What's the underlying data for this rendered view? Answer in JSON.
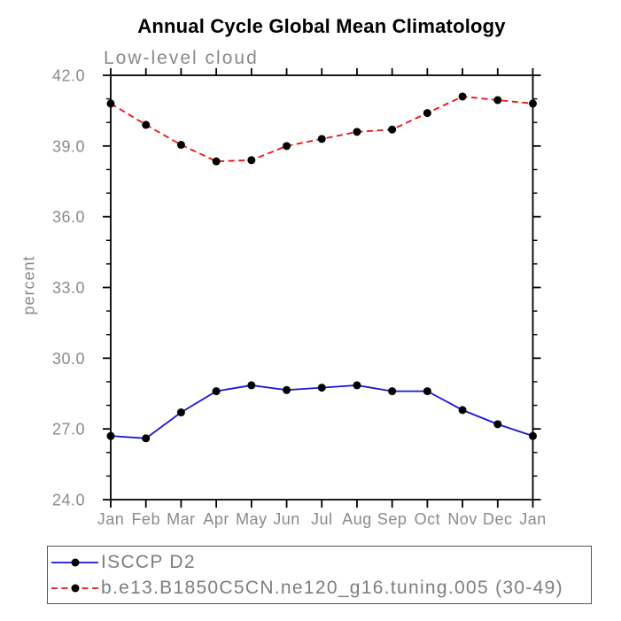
{
  "page": {
    "background": "#ffffff"
  },
  "chart_data": {
    "type": "line",
    "title": "Annual Cycle Global Mean Climatology",
    "subtitle": "Low-level cloud",
    "xlabel": "",
    "ylabel": "percent",
    "categories": [
      "Jan",
      "Feb",
      "Mar",
      "Apr",
      "May",
      "Jun",
      "Jul",
      "Aug",
      "Sep",
      "Oct",
      "Nov",
      "Dec",
      "Jan"
    ],
    "ylim": [
      24.0,
      42.0
    ],
    "ytick_major_interval": 3.0,
    "ytick_minor_interval": 1.0,
    "ytick_labels": [
      "24.0",
      "27.0",
      "30.0",
      "33.0",
      "36.0",
      "39.0",
      "42.0"
    ],
    "grid": false,
    "legend_position": "bottom-left-box",
    "axis_color": "#000000",
    "label_color": "#8a8a8a",
    "marker_color": "#000000",
    "marker_radius": 4.5,
    "series": [
      {
        "name": "ISCCP D2",
        "color": "#1515d6",
        "style": "solid",
        "marker": "filled-circle",
        "values": [
          26.7,
          26.6,
          27.7,
          28.6,
          28.85,
          28.65,
          28.75,
          28.85,
          28.6,
          28.6,
          27.8,
          27.2,
          26.7
        ]
      },
      {
        "name": "b.e13.B1850C5CN.ne120_g16.tuning.005 (30-49)",
        "color": "#ee1010",
        "style": "dashed",
        "marker": "filled-circle",
        "values": [
          40.8,
          39.9,
          39.05,
          38.35,
          38.4,
          39.0,
          39.3,
          39.6,
          39.7,
          40.4,
          41.1,
          40.95,
          40.8
        ]
      }
    ]
  }
}
